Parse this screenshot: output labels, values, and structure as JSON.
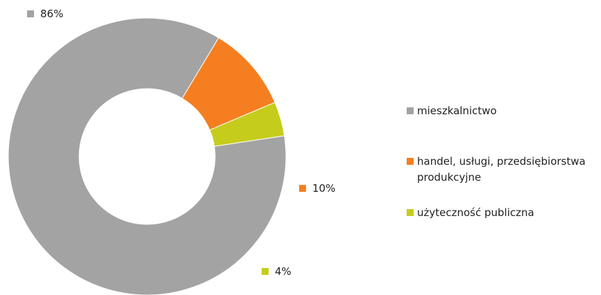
{
  "chart_data": {
    "type": "pie",
    "donut": true,
    "slices": [
      {
        "label": "mieszkalnictwo",
        "value": 86,
        "value_label": "86%",
        "color": "#a3a3a3"
      },
      {
        "label": "handel, usługi, przedsiębiorstwa produkcyjne",
        "label_lines": [
          "handel, usługi, przedsiębiorstwa",
          "produkcyjne"
        ],
        "value": 10,
        "value_label": "10%",
        "color": "#f57f20"
      },
      {
        "label": "użyteczność publiczna",
        "value": 4,
        "value_label": "4%",
        "color": "#c6cc1c"
      }
    ],
    "legend": {
      "position": "right",
      "entries": [
        "mieszkalnictwo",
        "handel, usługi, przedsiębiorstwa produkcyjne",
        "użyteczność publiczna"
      ]
    }
  }
}
